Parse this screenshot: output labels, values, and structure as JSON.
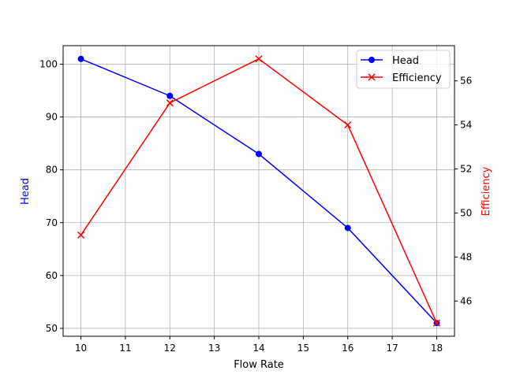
{
  "chart_data": {
    "type": "line",
    "title": "",
    "xlabel": "Flow Rate",
    "x": [
      10,
      12,
      14,
      16,
      18
    ],
    "xticks": [
      10,
      11,
      12,
      13,
      14,
      15,
      16,
      17,
      18
    ],
    "xlim": [
      9.6,
      18.4
    ],
    "grid": true,
    "legend_position": "upper right",
    "series": [
      {
        "name": "Head",
        "axis": "left",
        "color": "#0000ff",
        "marker": "circle",
        "values": [
          101,
          94,
          83,
          69,
          51
        ]
      },
      {
        "name": "Efficiency",
        "axis": "right",
        "color": "#ff0000",
        "marker": "x",
        "values": [
          49,
          55,
          57,
          54,
          45
        ]
      }
    ],
    "y_left": {
      "label": "Head",
      "color": "#0000ff",
      "ticks": [
        50,
        60,
        70,
        80,
        90,
        100
      ],
      "ylim": [
        48.5,
        103.5
      ]
    },
    "y_right": {
      "label": "Efficiency",
      "color": "#ff0000",
      "ticks": [
        46,
        48,
        50,
        52,
        54,
        56
      ],
      "ylim": [
        44.4,
        57.6
      ]
    }
  }
}
